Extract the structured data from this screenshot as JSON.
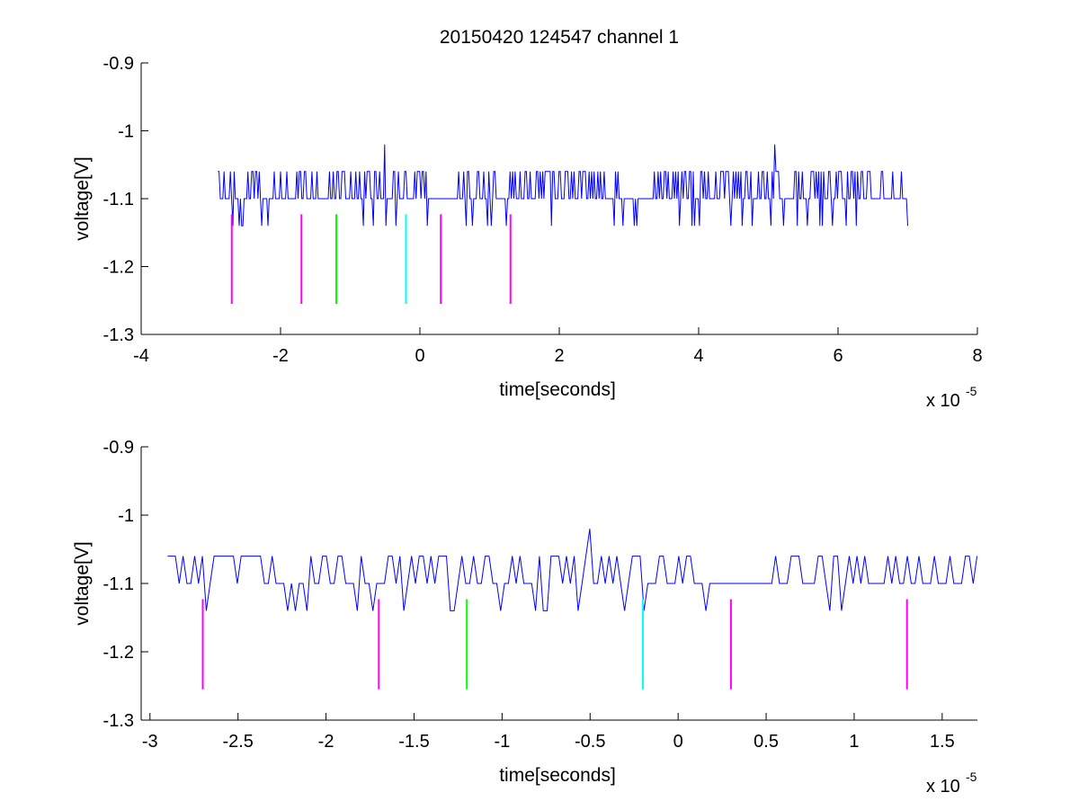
{
  "title": "20150420 124547 channel 1",
  "colors": {
    "trace": "#0000ff",
    "marker_magenta": "#ff00ff",
    "marker_green": "#00ff00",
    "marker_cyan": "#00ffff",
    "axes": "#000000",
    "background": "#ffffff"
  },
  "chart_data": [
    {
      "type": "line",
      "title": "20150420 124547 channel 1",
      "xlabel": "time[seconds]",
      "ylabel": "voltage[V]",
      "x_multiplier_label": "x 10",
      "x_multiplier_exponent": "-5",
      "xlim": [
        -4,
        8
      ],
      "ylim": [
        -1.3,
        -0.9
      ],
      "y_reversed": true,
      "x_ticks": [
        -4,
        -2,
        0,
        2,
        4,
        6,
        8
      ],
      "x_tick_labels": [
        "-4",
        "-2",
        "0",
        "2",
        "4",
        "6",
        "8"
      ],
      "y_ticks": [
        -0.9,
        -1,
        -1.1,
        -1.2,
        -1.3
      ],
      "y_tick_labels": [
        "-0.9",
        "-1",
        "-1.1",
        "-1.2",
        "-1.3"
      ],
      "grid": false,
      "signal": {
        "x_range": [
          -2.9,
          7.0
        ],
        "baseline": -1.1,
        "levels": [
          -1.06,
          -1.1,
          -1.14
        ],
        "spikes": [
          {
            "x": -0.5,
            "y": -1.02
          },
          {
            "x": 5.1,
            "y": -1.02
          }
        ]
      },
      "markers": [
        {
          "x": -2.7,
          "y_top": -1.123,
          "y_bottom": -1.255,
          "color": "magenta"
        },
        {
          "x": -1.7,
          "y_top": -1.123,
          "y_bottom": -1.255,
          "color": "magenta"
        },
        {
          "x": -1.2,
          "y_top": -1.123,
          "y_bottom": -1.255,
          "color": "green"
        },
        {
          "x": -0.2,
          "y_top": -1.123,
          "y_bottom": -1.255,
          "color": "cyan"
        },
        {
          "x": 0.3,
          "y_top": -1.123,
          "y_bottom": -1.255,
          "color": "magenta"
        },
        {
          "x": 1.3,
          "y_top": -1.123,
          "y_bottom": -1.255,
          "color": "magenta"
        }
      ]
    },
    {
      "type": "line",
      "xlabel": "time[seconds]",
      "ylabel": "voltage[V]",
      "x_multiplier_label": "x 10",
      "x_multiplier_exponent": "-5",
      "xlim": [
        -3.05,
        1.7
      ],
      "ylim": [
        -1.3,
        -0.9
      ],
      "y_reversed": true,
      "x_ticks": [
        -3,
        -2.5,
        -2,
        -1.5,
        -1,
        -0.5,
        0,
        0.5,
        1,
        1.5
      ],
      "x_tick_labels": [
        "-3",
        "-2.5",
        "-2",
        "-1.5",
        "-1",
        "-0.5",
        "0",
        "0.5",
        "1",
        "1.5"
      ],
      "y_ticks": [
        -0.9,
        -1,
        -1.1,
        -1.2,
        -1.3
      ],
      "y_tick_labels": [
        "-0.9",
        "-1",
        "-1.1",
        "-1.2",
        "-1.3"
      ],
      "grid": false,
      "signal": {
        "x_range": [
          -2.9,
          1.7
        ],
        "baseline": -1.1,
        "levels": [
          -1.06,
          -1.1,
          -1.14
        ],
        "spikes": [
          {
            "x": -0.5,
            "y": -1.02
          }
        ]
      },
      "markers": [
        {
          "x": -2.7,
          "y_top": -1.123,
          "y_bottom": -1.255,
          "color": "magenta"
        },
        {
          "x": -1.7,
          "y_top": -1.123,
          "y_bottom": -1.255,
          "color": "magenta"
        },
        {
          "x": -1.2,
          "y_top": -1.123,
          "y_bottom": -1.255,
          "color": "green"
        },
        {
          "x": -0.2,
          "y_top": -1.123,
          "y_bottom": -1.255,
          "color": "cyan"
        },
        {
          "x": 0.3,
          "y_top": -1.123,
          "y_bottom": -1.255,
          "color": "magenta"
        },
        {
          "x": 1.3,
          "y_top": -1.123,
          "y_bottom": -1.255,
          "color": "magenta"
        }
      ]
    }
  ]
}
